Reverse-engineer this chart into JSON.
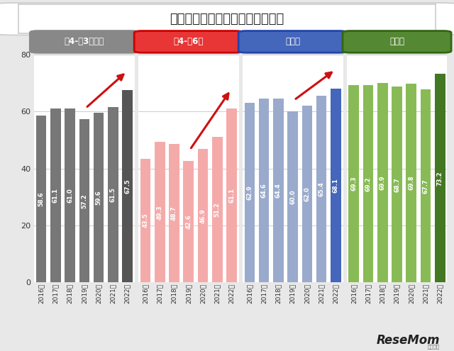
{
  "title": "上手な勉強のしかたがわからない",
  "groups": [
    {
      "label": "小4-高3生全体",
      "label_bg": "#888888",
      "label_text_color": "#ffffff",
      "bar_color_normal": "#777777",
      "bar_color_highlight": "#555555",
      "values": [
        58.6,
        61.1,
        61.0,
        57.2,
        59.6,
        61.5,
        67.5
      ],
      "highlight_indices": [
        6
      ],
      "arrow": true,
      "arrow_from": 3,
      "arrow_to": 6
    },
    {
      "label": "小4-小6生",
      "label_bg": "#e83535",
      "label_border": "#cc0000",
      "label_text_color": "#ffffff",
      "bar_color_normal": "#f5aaaa",
      "bar_color_highlight": "#f5aaaa",
      "values": [
        43.5,
        49.3,
        48.7,
        42.6,
        46.9,
        51.2,
        61.1
      ],
      "highlight_indices": [],
      "arrow": true,
      "arrow_from": 3,
      "arrow_to": 6
    },
    {
      "label": "中学生",
      "label_bg": "#4466bb",
      "label_border": "#2244aa",
      "label_text_color": "#ffffff",
      "bar_color_normal": "#99aacc",
      "bar_color_highlight": "#4466bb",
      "values": [
        62.9,
        64.6,
        64.4,
        60.0,
        62.0,
        65.4,
        68.1
      ],
      "highlight_indices": [
        6
      ],
      "arrow": true,
      "arrow_from": 3,
      "arrow_to": 6
    },
    {
      "label": "高校生",
      "label_bg": "#558833",
      "label_border": "#336611",
      "label_text_color": "#ffffff",
      "bar_color_normal": "#88bb55",
      "bar_color_highlight": "#447722",
      "values": [
        69.3,
        69.2,
        69.9,
        68.7,
        69.8,
        67.7,
        73.2
      ],
      "highlight_indices": [
        6
      ],
      "arrow": false
    }
  ],
  "years": [
    "2016年",
    "2017年",
    "2018年",
    "2019年",
    "2020年",
    "2021年",
    "2022年"
  ],
  "ylim": [
    0,
    80
  ],
  "yticks": [
    0,
    20,
    40,
    60,
    80
  ],
  "background_color": "#e8e8e8",
  "plot_bg": "#ffffff"
}
